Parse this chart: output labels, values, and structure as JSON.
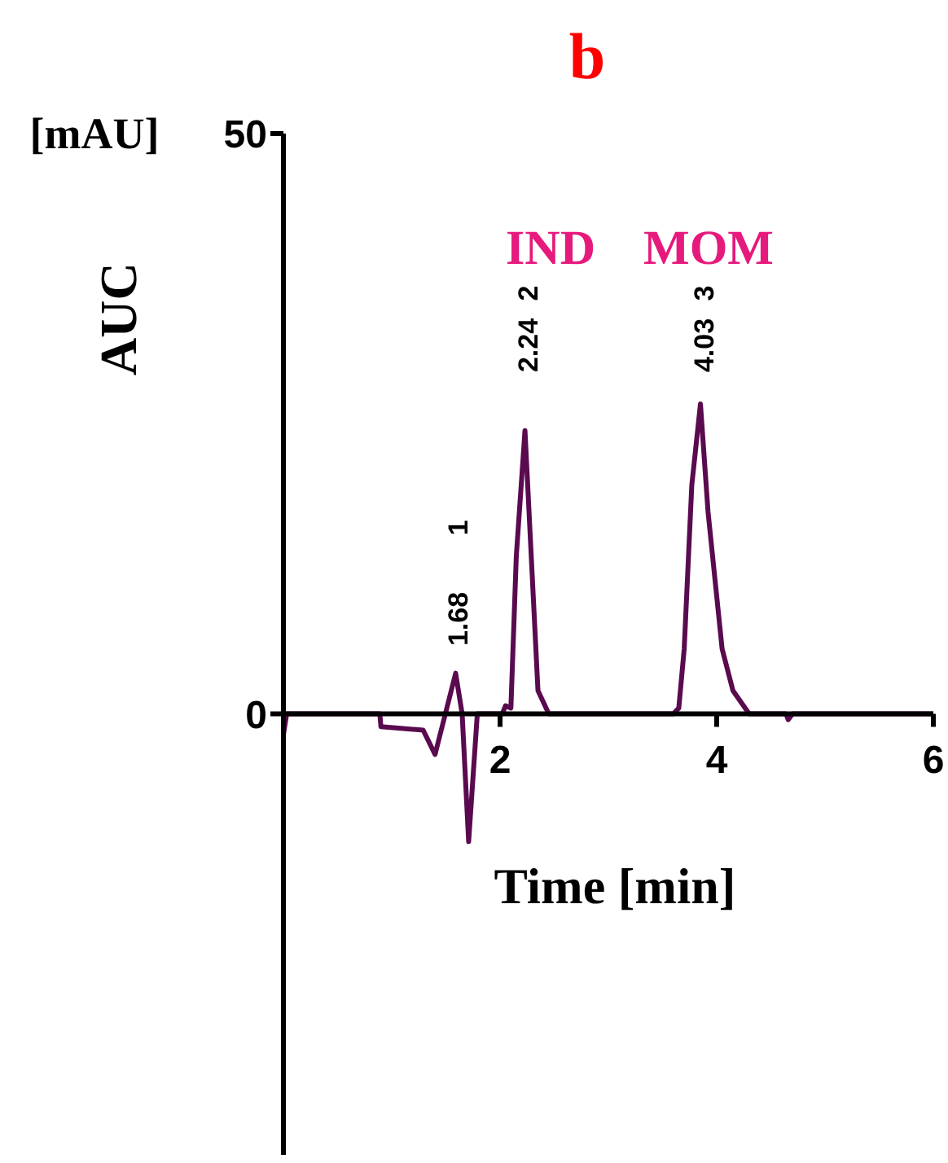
{
  "chart_data": {
    "type": "line",
    "title": "b",
    "xlabel": "Time [min]",
    "ylabel": "AUC",
    "x": [
      0,
      0.03,
      0.89,
      0.9,
      1.29,
      1.4,
      1.59,
      1.65,
      1.71,
      1.79,
      2.02,
      2.05,
      2.1,
      2.15,
      2.23,
      2.35,
      2.45,
      3.6,
      3.65,
      3.7,
      3.77,
      3.85,
      3.92,
      4.05,
      4.15,
      4.3,
      4.64,
      4.66,
      4.7,
      6
    ],
    "series": [
      {
        "color": "#5a0a4e",
        "values": [
          -1.8,
          0,
          0,
          -1.1,
          -1.4,
          -3.5,
          3.5,
          0,
          -11,
          0,
          0,
          0.7,
          0.5,
          13.6,
          24.4,
          2,
          0,
          0,
          0.5,
          5.6,
          19.7,
          26.7,
          17.4,
          5.6,
          2,
          0,
          0,
          -0.5,
          0,
          0
        ]
      }
    ],
    "xlim": [
      0,
      6
    ],
    "xticks": [
      2,
      4,
      6
    ],
    "ylim": [
      -38,
      50
    ],
    "yticks": [
      0,
      50
    ],
    "grid": false,
    "legend": false,
    "marker": "none",
    "line_style": "solid",
    "annotations": [
      "1.68",
      "1",
      "2.24",
      "2",
      "4.03",
      "3",
      "IND",
      "MOM",
      "[mAU]"
    ]
  }
}
